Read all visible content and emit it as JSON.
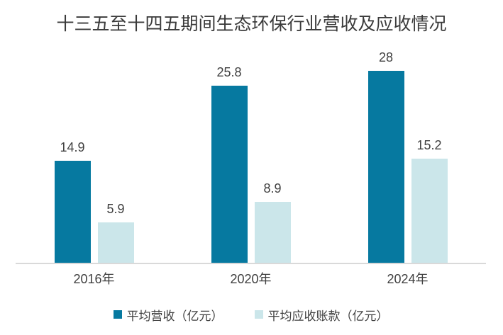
{
  "chart_data": {
    "type": "bar",
    "title": "十三五至十四五期间生态环保行业营收及应收情况",
    "categories": [
      "2016年",
      "2020年",
      "2024年"
    ],
    "series": [
      {
        "name": "平均营收（亿元）",
        "color": "#0679a0",
        "values": [
          14.9,
          25.8,
          28
        ],
        "labels": [
          "14.9",
          "25.8",
          "28"
        ]
      },
      {
        "name": "平均应收账款（亿元）",
        "color": "#cbe6ea",
        "values": [
          5.9,
          8.9,
          15.2
        ],
        "labels": [
          "5.9",
          "8.9",
          "15.2"
        ]
      }
    ],
    "ylim": [
      0,
      28
    ],
    "grid": false,
    "legend_position": "bottom",
    "value_labels": true,
    "axis_line_color": "#d9d9d9",
    "text_color": "#404040",
    "title_color": "#3a3a3a",
    "background": "#ffffff"
  }
}
